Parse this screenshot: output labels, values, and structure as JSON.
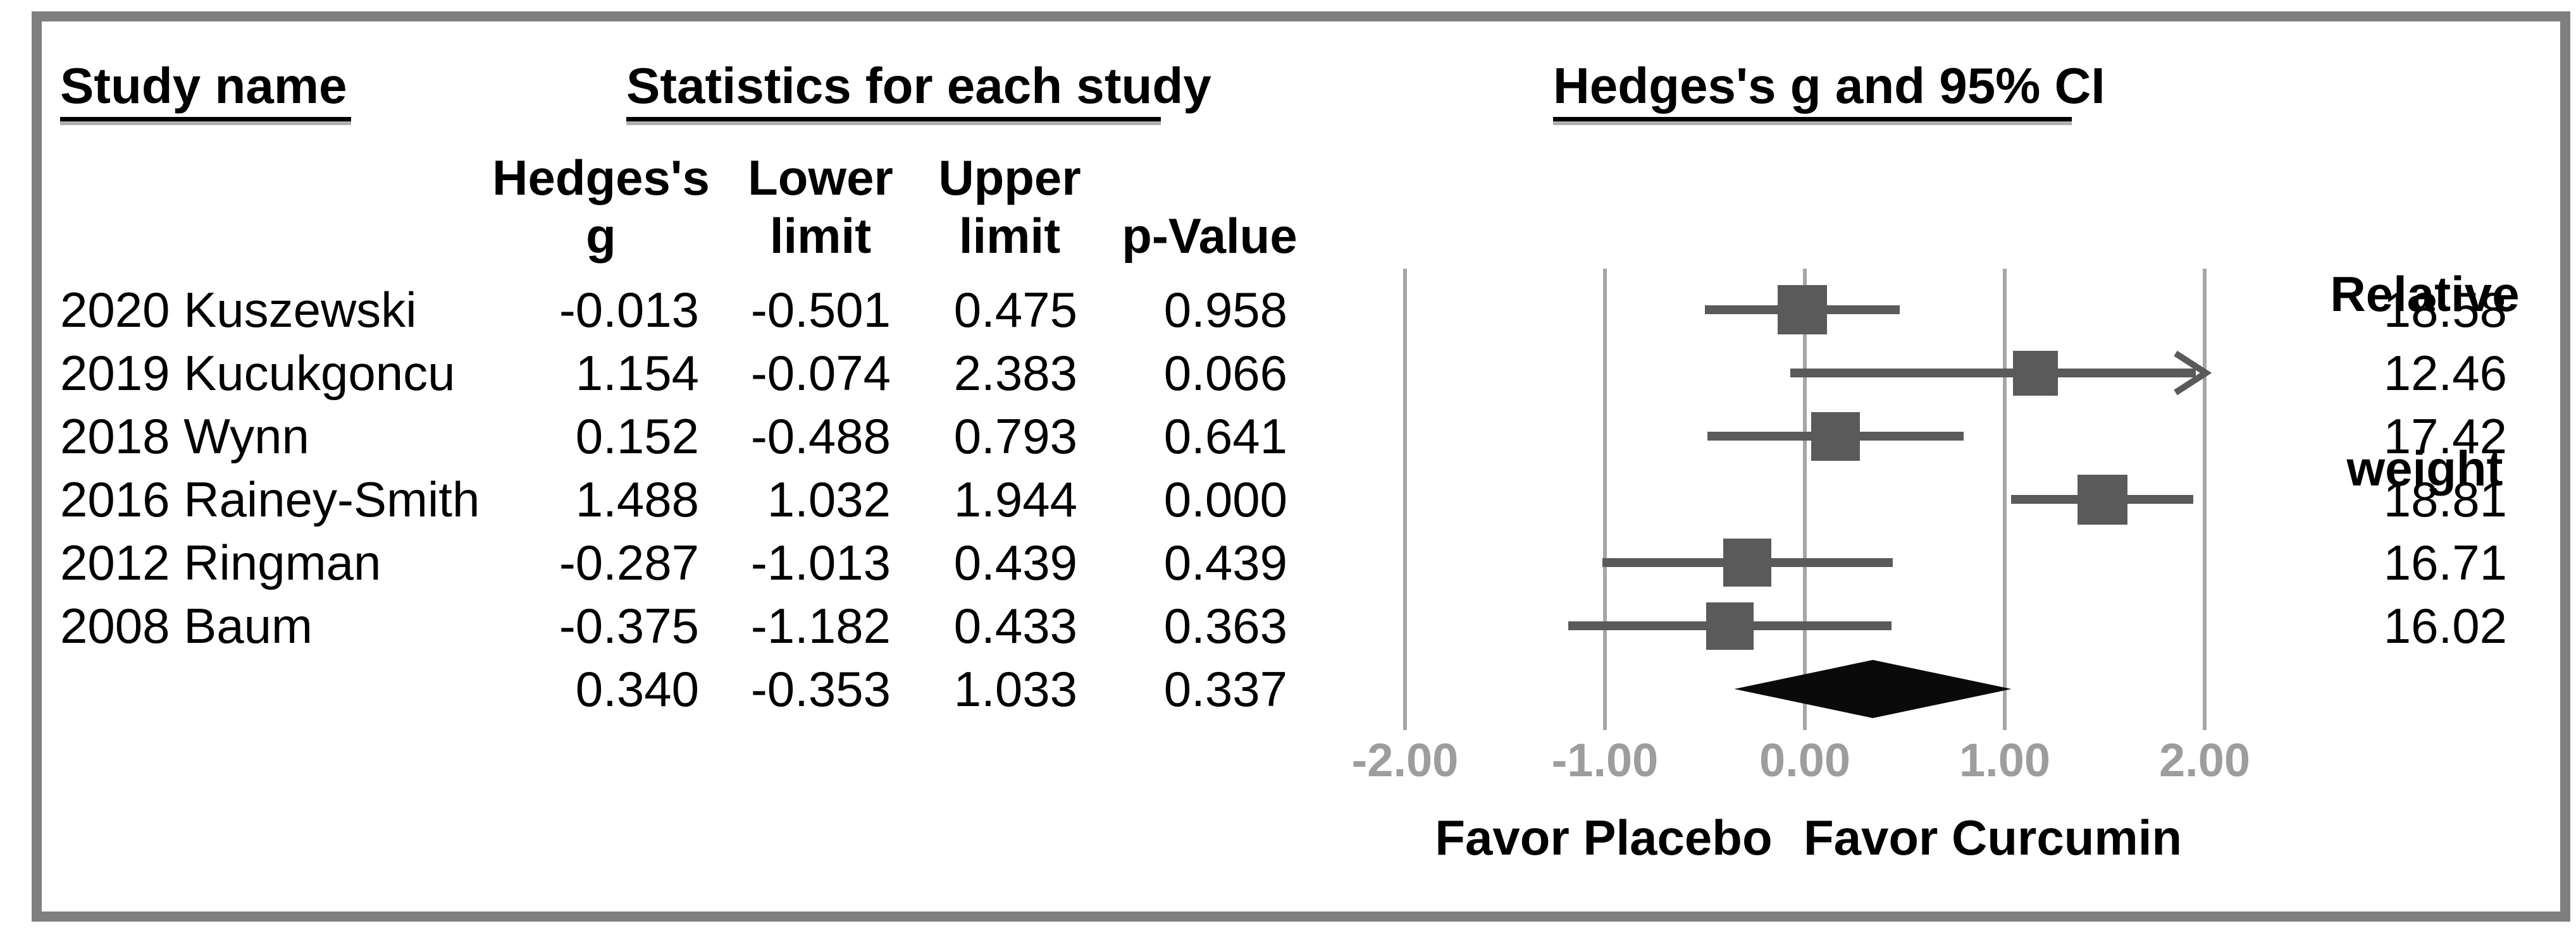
{
  "header": {
    "study_col_title": "Study name",
    "stats_title": "Statistics for each study",
    "stat_columns": [
      {
        "line1": "Hedges's",
        "line2": "g"
      },
      {
        "line1": "Lower",
        "line2": "limit"
      },
      {
        "line1": "Upper",
        "line2": "limit"
      },
      {
        "line1": "",
        "line2": "p-Value"
      }
    ],
    "weight_col": {
      "line1": "Relative",
      "line2": "weight"
    }
  },
  "footer": {
    "favor_left": "Favor Placebo",
    "favor_right": "Favor Curcumin"
  },
  "colors": {
    "frame": "#7f7f7f",
    "marker": "#5a5a5a",
    "gridline": "#a6a6a6",
    "tick_label": "#9d9d9d",
    "diamond": "#0a0a0a",
    "text": "#000000"
  },
  "chart_data": {
    "type": "forest",
    "title": "Hedges's g and 95% CI",
    "x_axis": {
      "min": -2,
      "max": 2,
      "tick_values": [
        -2,
        -1,
        0,
        1,
        2
      ],
      "tick_labels": [
        "-2.00",
        "-1.00",
        "0.00",
        "1.00",
        "2.00"
      ],
      "grid": true
    },
    "studies": [
      {
        "name": "2020 Kuszewski",
        "hedges_g": "-0.013",
        "lower": "-0.501",
        "upper": "0.475",
        "p": "0.958",
        "weight": "18.58"
      },
      {
        "name": "2019 Kucukgoncu",
        "hedges_g": "1.154",
        "lower": "-0.074",
        "upper": "2.383",
        "p": "0.066",
        "weight": "12.46"
      },
      {
        "name": "2018 Wynn",
        "hedges_g": "0.152",
        "lower": "-0.488",
        "upper": "0.793",
        "p": "0.641",
        "weight": "17.42"
      },
      {
        "name": "2016 Rainey-Smith",
        "hedges_g": "1.488",
        "lower": "1.032",
        "upper": "1.944",
        "p": "0.000",
        "weight": "18.81"
      },
      {
        "name": "2012 Ringman",
        "hedges_g": "-0.287",
        "lower": "-1.013",
        "upper": "0.439",
        "p": "0.439",
        "weight": "16.71"
      },
      {
        "name": "2008 Baum",
        "hedges_g": "-0.375",
        "lower": "-1.182",
        "upper": "0.433",
        "p": "0.363",
        "weight": "16.02"
      }
    ],
    "summary": {
      "hedges_g": "0.340",
      "lower": "-0.353",
      "upper": "1.033",
      "p": "0.337"
    },
    "favor_left": "Favor Placebo",
    "favor_right": "Favor Curcumin"
  }
}
